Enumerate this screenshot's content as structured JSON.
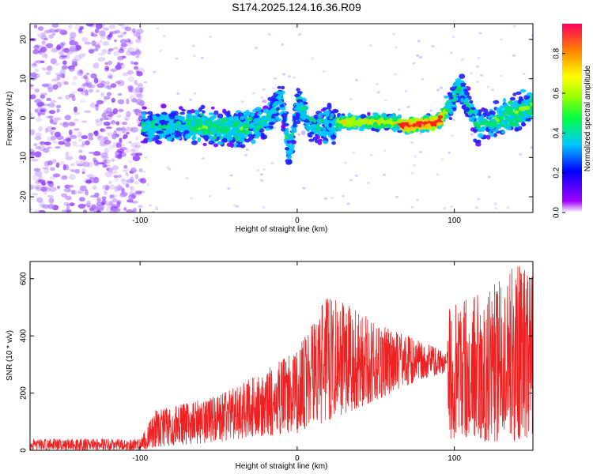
{
  "title": "S174.2025.124.16.36.R09",
  "colors": {
    "snr_line": "#ee2222",
    "axis": "#000000"
  },
  "chart_data": [
    {
      "type": "heatmap",
      "xlabel": "Height of straight line (km)",
      "ylabel": "Frequency (Hz)",
      "xlim": [
        -170,
        150
      ],
      "ylim": [
        -24,
        24
      ],
      "x_ticks": [
        -100,
        0,
        100
      ],
      "y_ticks": [
        -20,
        -10,
        0,
        10,
        20
      ],
      "colorbar": {
        "label": "Normalized spectral amplitude",
        "range": [
          0.0,
          0.95
        ],
        "ticks": [
          "0.0",
          "0.2",
          "0.4",
          "0.6",
          "0.8"
        ]
      },
      "ridge": [
        {
          "x": -95,
          "f": -2
        },
        {
          "x": -60,
          "f": -2
        },
        {
          "x": -40,
          "f": -3
        },
        {
          "x": -20,
          "f": -1
        },
        {
          "x": -10,
          "f": 5
        },
        {
          "x": -5,
          "f": -10
        },
        {
          "x": 0,
          "f": 4
        },
        {
          "x": 10,
          "f": -2
        },
        {
          "x": 30,
          "f": -1
        },
        {
          "x": 60,
          "f": -1
        },
        {
          "x": 70,
          "f": -2
        },
        {
          "x": 90,
          "f": -1
        },
        {
          "x": 95,
          "f": 2
        },
        {
          "x": 103,
          "f": 8
        },
        {
          "x": 115,
          "f": -2
        },
        {
          "x": 130,
          "f": 0
        },
        {
          "x": 150,
          "f": 3
        }
      ]
    },
    {
      "type": "line",
      "xlabel": "Height of straight line (km)",
      "ylabel": "SNR (10 * v/v)",
      "xlim": [
        -170,
        150
      ],
      "ylim": [
        0,
        660
      ],
      "x_ticks": [
        -100,
        0,
        100
      ],
      "y_ticks": [
        0,
        200,
        400,
        600
      ],
      "envelope": [
        {
          "x": -170,
          "min": 0,
          "max": 40
        },
        {
          "x": -100,
          "min": 0,
          "max": 40
        },
        {
          "x": -90,
          "min": 10,
          "max": 140
        },
        {
          "x": -50,
          "min": 30,
          "max": 190
        },
        {
          "x": -20,
          "min": 50,
          "max": 280
        },
        {
          "x": 0,
          "min": 60,
          "max": 350
        },
        {
          "x": 20,
          "min": 100,
          "max": 550
        },
        {
          "x": 40,
          "min": 150,
          "max": 480
        },
        {
          "x": 60,
          "min": 200,
          "max": 420
        },
        {
          "x": 80,
          "min": 250,
          "max": 380
        },
        {
          "x": 95,
          "min": 270,
          "max": 340
        },
        {
          "x": 97,
          "min": 40,
          "max": 500
        },
        {
          "x": 120,
          "min": 30,
          "max": 560
        },
        {
          "x": 140,
          "min": 30,
          "max": 650
        },
        {
          "x": 150,
          "min": 50,
          "max": 610
        }
      ]
    }
  ]
}
